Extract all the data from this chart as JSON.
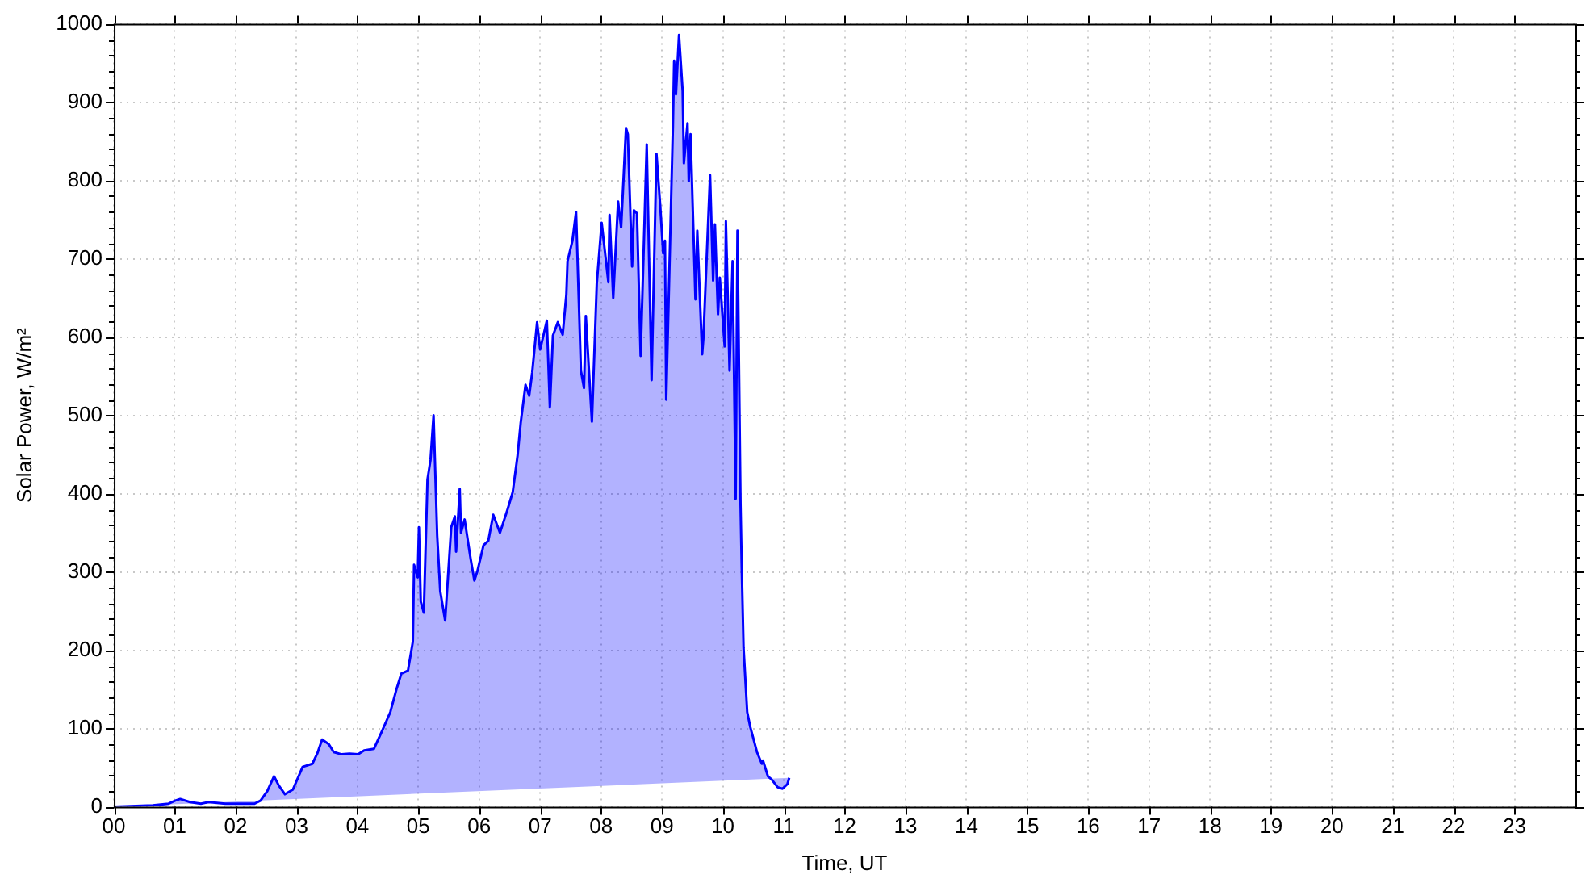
{
  "chart_data": {
    "type": "area",
    "xlabel": "Time, UT",
    "ylabel": "Solar Power, W/m²",
    "x": [
      0,
      0.64,
      0.9,
      1.01,
      1.09,
      1.25,
      1.43,
      1.56,
      1.83,
      2.1,
      2.31,
      2.41,
      2.52,
      2.63,
      2.71,
      2.81,
      2.94,
      3.1,
      3.26,
      3.34,
      3.42,
      3.53,
      3.61,
      3.74,
      3.87,
      4.01,
      4.11,
      4.27,
      4.4,
      4.54,
      4.64,
      4.72,
      4.83,
      4.91,
      4.93,
      4.99,
      5.01,
      5.04,
      5.09,
      5.15,
      5.2,
      5.25,
      5.31,
      5.36,
      5.44,
      5.54,
      5.6,
      5.62,
      5.68,
      5.7,
      5.76,
      5.86,
      5.92,
      5.97,
      6.07,
      6.15,
      6.23,
      6.34,
      6.47,
      6.55,
      6.63,
      6.68,
      6.76,
      6.82,
      6.87,
      6.95,
      7,
      7.11,
      7.16,
      7.21,
      7.29,
      7.37,
      7.43,
      7.45,
      7.53,
      7.59,
      7.67,
      7.72,
      7.75,
      7.85,
      7.93,
      8.01,
      8.12,
      8.14,
      8.2,
      8.28,
      8.33,
      8.41,
      8.44,
      8.51,
      8.54,
      8.59,
      8.65,
      8.75,
      8.83,
      8.91,
      8.97,
      9.02,
      9.05,
      9.07,
      9.18,
      9.2,
      9.23,
      9.28,
      9.34,
      9.36,
      9.42,
      9.44,
      9.47,
      9.55,
      9.58,
      9.66,
      9.68,
      9.79,
      9.84,
      9.87,
      9.92,
      9.95,
      10.03,
      10.05,
      10.11,
      10.16,
      10.21,
      10.24,
      10.29,
      10.31,
      10.34,
      10.4,
      10.45,
      10.56,
      10.64,
      10.66,
      10.74,
      10.8,
      10.9,
      10.98,
      11.06,
      11.09
    ],
    "series": [
      {
        "color": "#0000ff",
        "values": [
          0,
          2,
          4,
          8,
          10,
          6,
          4,
          6,
          4,
          4,
          4,
          8,
          20,
          39,
          27,
          16,
          22,
          51,
          55,
          68,
          86,
          80,
          70,
          67,
          68,
          67,
          72,
          74,
          96,
          121,
          150,
          170,
          174,
          211,
          309,
          293,
          357,
          262,
          248,
          418,
          443,
          500,
          346,
          275,
          238,
          357,
          371,
          326,
          406,
          350,
          367,
          316,
          289,
          301,
          334,
          340,
          373,
          350,
          381,
          402,
          449,
          490,
          539,
          525,
          555,
          619,
          584,
          621,
          510,
          602,
          619,
          603,
          654,
          697,
          723,
          760,
          557,
          535,
          627,
          492,
          668,
          746,
          670,
          756,
          650,
          773,
          740,
          867,
          859,
          690,
          762,
          758,
          576,
          846,
          545,
          834,
          770,
          707,
          723,
          520,
          869,
          953,
          910,
          986,
          914,
          822,
          873,
          799,
          859,
          648,
          736,
          578,
          598,
          807,
          672,
          744,
          629,
          676,
          588,
          748,
          557,
          697,
          393,
          736,
          387,
          305,
          203,
          121,
          102,
          70,
          55,
          59,
          39,
          35,
          25,
          23,
          29,
          37
        ]
      }
    ],
    "xlim": [
      0,
      24
    ],
    "xticks": [
      {
        "value": 0,
        "label": "00"
      },
      {
        "value": 1,
        "label": "01"
      },
      {
        "value": 2,
        "label": "02"
      },
      {
        "value": 3,
        "label": "03"
      },
      {
        "value": 4,
        "label": "04"
      },
      {
        "value": 5,
        "label": "05"
      },
      {
        "value": 6,
        "label": "06"
      },
      {
        "value": 7,
        "label": "07"
      },
      {
        "value": 8,
        "label": "08"
      },
      {
        "value": 9,
        "label": "09"
      },
      {
        "value": 10,
        "label": "10"
      },
      {
        "value": 11,
        "label": "11"
      },
      {
        "value": 12,
        "label": "12"
      },
      {
        "value": 13,
        "label": "13"
      },
      {
        "value": 14,
        "label": "14"
      },
      {
        "value": 15,
        "label": "15"
      },
      {
        "value": 16,
        "label": "16"
      },
      {
        "value": 17,
        "label": "17"
      },
      {
        "value": 18,
        "label": "18"
      },
      {
        "value": 19,
        "label": "19"
      },
      {
        "value": 20,
        "label": "20"
      },
      {
        "value": 21,
        "label": "21"
      },
      {
        "value": 22,
        "label": "22"
      },
      {
        "value": 23,
        "label": "23"
      }
    ],
    "ylim": [
      0,
      1000
    ],
    "yticks": [
      0,
      100,
      200,
      300,
      400,
      500,
      600,
      700,
      800,
      900,
      1000
    ],
    "grid": true,
    "legend": false,
    "marker": "none",
    "line_style": "solid"
  }
}
